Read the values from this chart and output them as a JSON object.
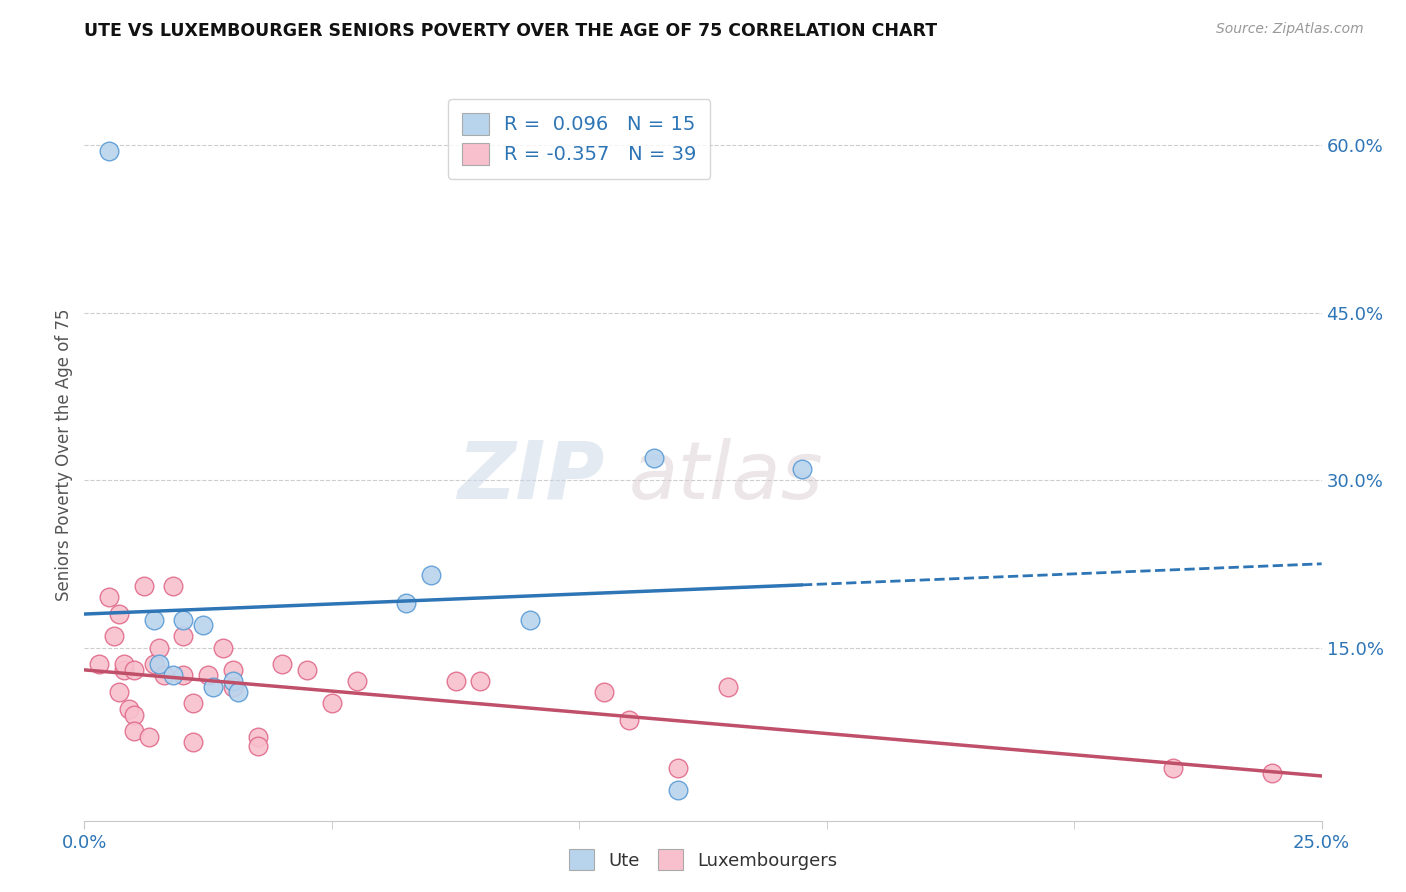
{
  "title": "UTE VS LUXEMBOURGER SENIORS POVERTY OVER THE AGE OF 75 CORRELATION CHART",
  "source": "Source: ZipAtlas.com",
  "ylabel": "Seniors Poverty Over the Age of 75",
  "ytick_values": [
    0.15,
    0.3,
    0.45,
    0.6
  ],
  "ytick_labels": [
    "15.0%",
    "30.0%",
    "45.0%",
    "60.0%"
  ],
  "xlim": [
    0.0,
    0.25
  ],
  "ylim": [
    -0.005,
    0.65
  ],
  "ute_R": 0.096,
  "ute_N": 15,
  "lux_R": -0.357,
  "lux_N": 39,
  "ute_color": "#b8d4ed",
  "ute_edge_color": "#5b9bd5",
  "ute_line_color": "#2e75b6",
  "lux_color": "#f8c0cc",
  "lux_edge_color": "#e06b8b",
  "lux_line_color": "#c0506a",
  "watermark_zip": "ZIP",
  "watermark_atlas": "atlas",
  "background_color": "#ffffff",
  "grid_color": "#c8c8c8",
  "ute_points": [
    [
      0.005,
      0.595
    ],
    [
      0.014,
      0.175
    ],
    [
      0.015,
      0.135
    ],
    [
      0.018,
      0.125
    ],
    [
      0.02,
      0.175
    ],
    [
      0.024,
      0.17
    ],
    [
      0.026,
      0.115
    ],
    [
      0.03,
      0.12
    ],
    [
      0.031,
      0.11
    ],
    [
      0.065,
      0.19
    ],
    [
      0.07,
      0.215
    ],
    [
      0.09,
      0.175
    ],
    [
      0.115,
      0.32
    ],
    [
      0.145,
      0.31
    ],
    [
      0.12,
      0.022
    ]
  ],
  "lux_points": [
    [
      0.003,
      0.135
    ],
    [
      0.005,
      0.195
    ],
    [
      0.006,
      0.16
    ],
    [
      0.007,
      0.11
    ],
    [
      0.007,
      0.18
    ],
    [
      0.008,
      0.13
    ],
    [
      0.008,
      0.135
    ],
    [
      0.009,
      0.095
    ],
    [
      0.01,
      0.13
    ],
    [
      0.01,
      0.09
    ],
    [
      0.01,
      0.075
    ],
    [
      0.012,
      0.205
    ],
    [
      0.013,
      0.07
    ],
    [
      0.014,
      0.135
    ],
    [
      0.015,
      0.15
    ],
    [
      0.016,
      0.125
    ],
    [
      0.018,
      0.205
    ],
    [
      0.02,
      0.16
    ],
    [
      0.02,
      0.125
    ],
    [
      0.022,
      0.1
    ],
    [
      0.022,
      0.065
    ],
    [
      0.025,
      0.125
    ],
    [
      0.028,
      0.15
    ],
    [
      0.03,
      0.13
    ],
    [
      0.03,
      0.115
    ],
    [
      0.035,
      0.07
    ],
    [
      0.035,
      0.062
    ],
    [
      0.04,
      0.135
    ],
    [
      0.045,
      0.13
    ],
    [
      0.05,
      0.1
    ],
    [
      0.055,
      0.12
    ],
    [
      0.075,
      0.12
    ],
    [
      0.08,
      0.12
    ],
    [
      0.105,
      0.11
    ],
    [
      0.11,
      0.085
    ],
    [
      0.12,
      0.042
    ],
    [
      0.13,
      0.115
    ],
    [
      0.22,
      0.042
    ],
    [
      0.24,
      0.038
    ]
  ],
  "ute_line_x": [
    0.0,
    0.145,
    0.25
  ],
  "ute_line_solid_end": 0.145,
  "lux_line_x": [
    0.0,
    0.25
  ]
}
